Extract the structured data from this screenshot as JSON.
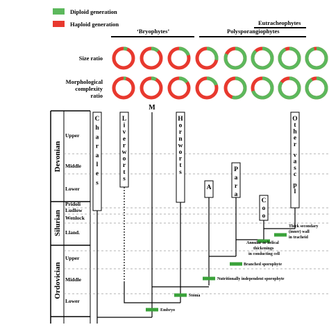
{
  "legend": {
    "diploid_label": "Diploid generation",
    "haploid_label": "Haploid generation",
    "diploid_color": "#5cb85c",
    "haploid_color": "#e8392e"
  },
  "groups": {
    "eutracheophytes": "Eutracheophytes",
    "bryophytes": "‘Bryophytes’",
    "polysporangiophytes": "Polysporangiophytes"
  },
  "rows": {
    "size_ratio": [
      "Size ratio"
    ],
    "morph_ratio": [
      "Morphological",
      "complexity",
      "ratio"
    ]
  },
  "donuts": {
    "size_diploid_fraction": [
      0.06,
      0.12,
      0.2,
      0.28,
      0.82,
      0.88,
      0.93,
      0.96
    ],
    "morph_diploid_fraction": [
      0.04,
      0.08,
      0.15,
      0.2,
      0.55,
      0.7,
      0.85,
      0.92
    ]
  },
  "periods": [
    {
      "name": "Devonian",
      "epochs": [
        "Upper",
        "Middle",
        "Lower"
      ]
    },
    {
      "name": "Silurian",
      "epochs": [
        "Pridoli",
        "Ludlow",
        "Wenlock",
        "Lland."
      ]
    },
    {
      "name": "Ordovician",
      "epochs": [
        "Upper",
        "Middle",
        "Lower"
      ]
    }
  ],
  "taxa": {
    "charales": "Charales",
    "liverworts": "Liverworts",
    "mosses": "M",
    "hornworts": "Hornworts",
    "aglaophyton": "A",
    "paratracheophytes": "Para",
    "cooksonia": "Coo",
    "other_vascular": "Other vasc pl"
  },
  "characters": [
    "Embryo",
    "Stoma",
    "Nutritionally independent sporophyte",
    "Branched sporophyte",
    [
      "Annular or helical",
      "thickenings",
      "in conducting cell"
    ],
    [
      "Thick secondary",
      "(inner) wall",
      "in tracheid"
    ]
  ]
}
